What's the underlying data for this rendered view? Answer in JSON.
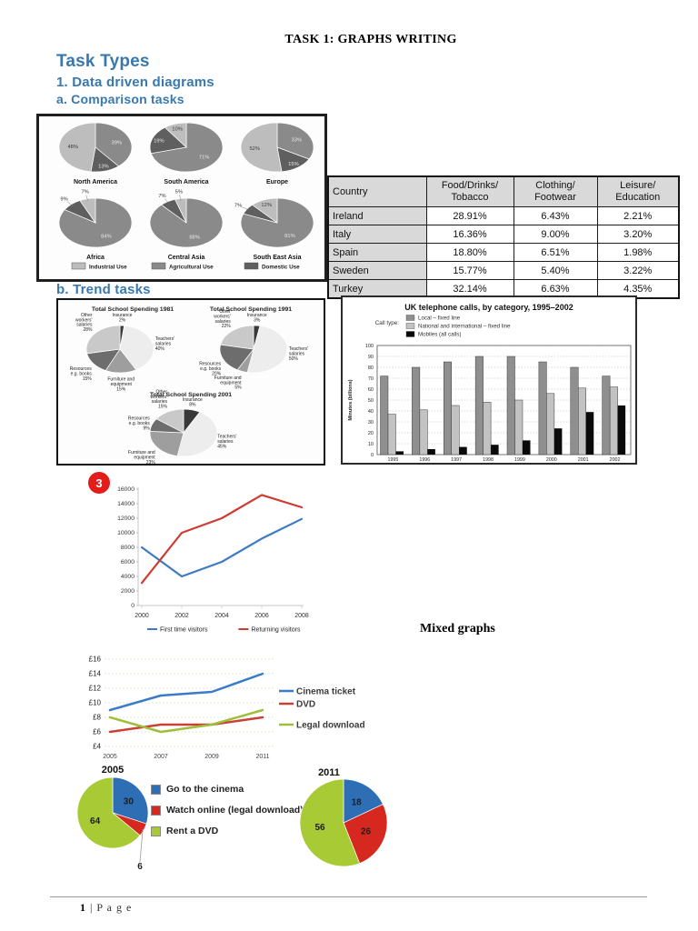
{
  "page": {
    "title": "TASK 1: GRAPHS WRITING",
    "footer": {
      "number": "1",
      "label": "| P a g e"
    }
  },
  "headings": {
    "task_types": "Task Types",
    "data_driven": "1. Data driven diagrams",
    "comparison_tasks": "a. Comparison tasks",
    "trend_tasks": "b. Trend tasks",
    "mixed_graphs": "Mixed graphs"
  },
  "figure_badge": "3",
  "table": {
    "headers": [
      [
        "Country"
      ],
      [
        "Food/Drinks/",
        "Tobacco"
      ],
      [
        "Clothing/",
        "Footwear"
      ],
      [
        "Leisure/",
        "Education"
      ]
    ],
    "rows": [
      [
        "Ireland",
        "28.91%",
        "6.43%",
        "2.21%"
      ],
      [
        "Italy",
        "16.36%",
        "9.00%",
        "3.20%"
      ],
      [
        "Spain",
        "18.80%",
        "6.51%",
        "1.98%"
      ],
      [
        "Sweden",
        "15.77%",
        "5.40%",
        "3.22%"
      ],
      [
        "Turkey",
        "32.14%",
        "6.63%",
        "4.35%"
      ]
    ]
  },
  "film_legend": {
    "items": [
      {
        "label": "Go to the cinema",
        "color": "#2e6eb5"
      },
      {
        "label": "Watch online (legal download)",
        "color": "#d6281e"
      },
      {
        "label": "Rent a DVD",
        "color": "#a8cb35"
      }
    ]
  },
  "chart_data": [
    {
      "id": "water_use",
      "type": "pie",
      "legend": [
        {
          "label": "Industrial Use",
          "color": "#bdbdbd"
        },
        {
          "label": "Agricultural Use",
          "color": "#8a8a8a"
        },
        {
          "label": "Domestic Use",
          "color": "#5f5f5f"
        }
      ],
      "pies": [
        {
          "name": "North America",
          "slices": [
            {
              "label": "Agricultural Use",
              "value": 39
            },
            {
              "label": "Domestic Use",
              "value": 13
            },
            {
              "label": "Industrial Use",
              "value": 48
            }
          ]
        },
        {
          "name": "South America",
          "slices": [
            {
              "label": "Agricultural Use",
              "value": 71
            },
            {
              "label": "Domestic Use",
              "value": 19
            },
            {
              "label": "Industrial Use",
              "value": 10
            }
          ]
        },
        {
          "name": "Europe",
          "slices": [
            {
              "label": "Agricultural Use",
              "value": 33
            },
            {
              "label": "Domestic Use",
              "value": 15
            },
            {
              "label": "Industrial Use",
              "value": 52
            }
          ]
        },
        {
          "name": "Africa",
          "slices": [
            {
              "label": "Agricultural Use",
              "value": 84
            },
            {
              "label": "Domestic Use",
              "value": 9
            },
            {
              "label": "Industrial Use",
              "value": 7
            }
          ]
        },
        {
          "name": "Central Asia",
          "slices": [
            {
              "label": "Agricultural Use",
              "value": 88
            },
            {
              "label": "Domestic Use",
              "value": 7
            },
            {
              "label": "Industrial Use",
              "value": 5
            }
          ]
        },
        {
          "name": "South East Asia",
          "slices": [
            {
              "label": "Agricultural Use",
              "value": 81
            },
            {
              "label": "Domestic Use",
              "value": 7
            },
            {
              "label": "Industrial Use",
              "value": 12
            }
          ]
        }
      ]
    },
    {
      "id": "school_spending",
      "type": "pie",
      "palette": {
        "Teachers' salaries": "#ededed",
        "Other workers' salaries": "#c9c9c9",
        "Furniture and equipment": "#9e9e9e",
        "Resources e.g. books": "#6d6d6d",
        "Insurance": "#383838"
      },
      "pies": [
        {
          "name": "Total School Spending 1981",
          "slices": [
            {
              "label": "Insurance",
              "value": 2
            },
            {
              "label": "Teachers' salaries",
              "value": 40
            },
            {
              "label": "Furniture and equipment",
              "value": 15
            },
            {
              "label": "Resources e.g. books",
              "value": 15
            },
            {
              "label": "Other workers' salaries",
              "value": 28
            }
          ]
        },
        {
          "name": "Total School Spending 1991",
          "slices": [
            {
              "label": "Insurance",
              "value": 3
            },
            {
              "label": "Teachers' salaries",
              "value": 50
            },
            {
              "label": "Furniture and equipment",
              "value": 5
            },
            {
              "label": "Resources e.g. books",
              "value": 20
            },
            {
              "label": "Other workers' salaries",
              "value": 22
            }
          ]
        },
        {
          "name": "Total School Spending 2001",
          "slices": [
            {
              "label": "Insurance",
              "value": 8
            },
            {
              "label": "Teachers' salaries",
              "value": 45
            },
            {
              "label": "Furniture and equipment",
              "value": 23
            },
            {
              "label": "Resources e.g. books",
              "value": 9
            },
            {
              "label": "Other workers' salaries",
              "value": 15
            }
          ]
        }
      ]
    },
    {
      "id": "uk_telephone",
      "type": "bar",
      "title": "UK telephone calls, by category, 1995–2002",
      "legend_title": "Call type:",
      "ylabel": "Minutes (billions)",
      "ylim": [
        0,
        100
      ],
      "ytick": 10,
      "categories": [
        "1995",
        "1996",
        "1997",
        "1998",
        "1999",
        "2000",
        "2001",
        "2002"
      ],
      "series": [
        {
          "name": "Local – fixed line",
          "color": "#8f8f8f",
          "values": [
            72,
            80,
            85,
            90,
            90,
            85,
            80,
            72
          ]
        },
        {
          "name": "National and international – fixed line",
          "color": "#c2c2c2",
          "values": [
            37,
            41,
            45,
            48,
            50,
            56,
            61,
            62
          ]
        },
        {
          "name": "Mobiles (all calls)",
          "color": "#0a0a0a",
          "values": [
            3,
            5,
            7,
            9,
            13,
            24,
            39,
            45
          ]
        }
      ]
    },
    {
      "id": "visitors",
      "type": "line",
      "x": [
        2000,
        2002,
        2004,
        2006,
        2008
      ],
      "ylim": [
        0,
        16000
      ],
      "ytick": 2000,
      "series": [
        {
          "name": "First time visitors",
          "color": "#3d7ac2",
          "values": [
            8000,
            4000,
            6000,
            9200,
            11900
          ]
        },
        {
          "name": "Returning visitors",
          "color": "#cf3a31",
          "values": [
            3100,
            10000,
            12000,
            15200,
            13500
          ]
        }
      ]
    },
    {
      "id": "film_prices",
      "type": "line",
      "x": [
        2005,
        2007,
        2009,
        2011
      ],
      "ylim": [
        4,
        16
      ],
      "ytick_labels": [
        "£4",
        "£6",
        "£8",
        "£10",
        "£12",
        "£14",
        "£16"
      ],
      "series": [
        {
          "name": "Cinema ticket",
          "color": "#3a7bc8",
          "values": [
            9,
            11,
            11.5,
            14
          ]
        },
        {
          "name": "DVD",
          "color": "#c94136",
          "values": [
            6,
            7,
            7,
            8
          ]
        },
        {
          "name": "Legal download",
          "color": "#9fbe3a",
          "values": [
            8,
            6,
            7,
            9
          ]
        }
      ]
    },
    {
      "id": "film_2005",
      "type": "pie",
      "title": "2005",
      "slices": [
        {
          "label": "Go to the cinema",
          "value": 30,
          "color": "#2e6eb5"
        },
        {
          "label": "Watch online (legal download)",
          "value": 6,
          "color": "#d6281e",
          "callout": [
            30,
            62
          ]
        },
        {
          "label": "Rent a DVD",
          "value": 64,
          "color": "#a8cb35"
        }
      ]
    },
    {
      "id": "film_2011",
      "type": "pie",
      "title": "2011",
      "slices": [
        {
          "label": "Go to the cinema",
          "value": 18,
          "color": "#2e6eb5"
        },
        {
          "label": "Watch online (legal download)",
          "value": 26,
          "color": "#d6281e"
        },
        {
          "label": "Rent a DVD",
          "value": 56,
          "color": "#a8cb35"
        }
      ]
    }
  ]
}
